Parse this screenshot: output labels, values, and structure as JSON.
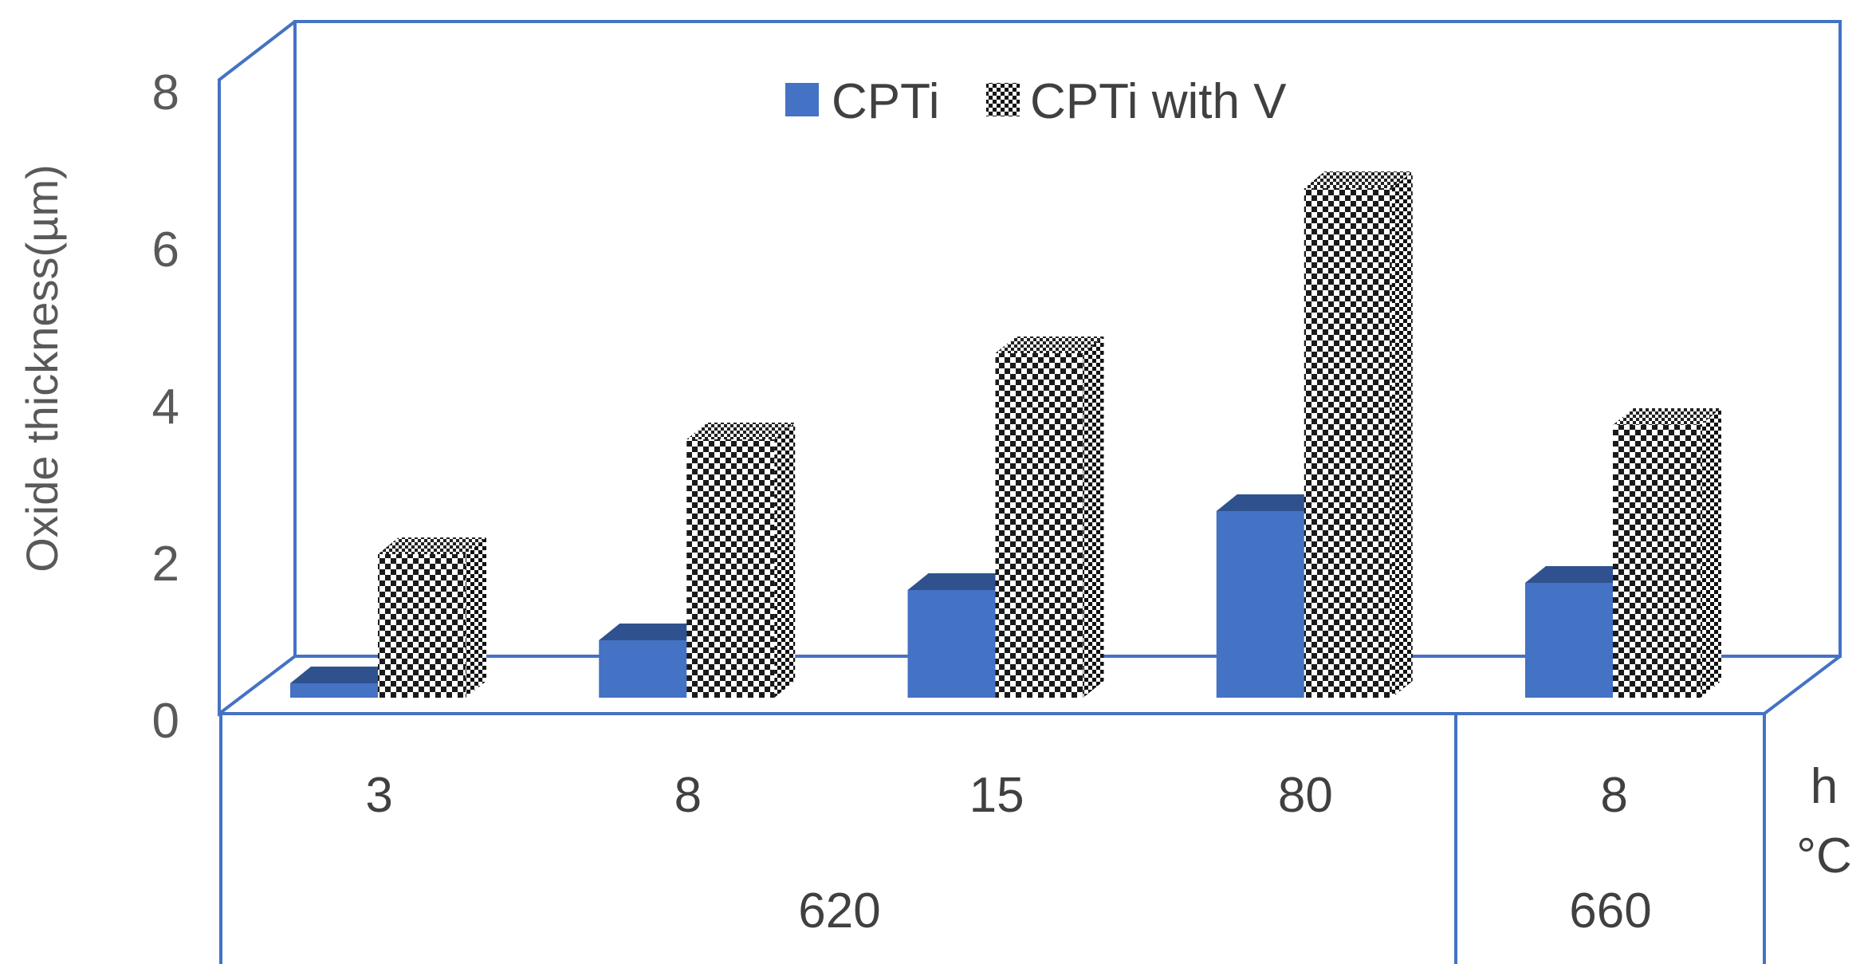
{
  "chart_data": {
    "type": "bar",
    "style": "3d-clustered-column",
    "title": "",
    "ylabel": "Oxide thickness(µm)",
    "ylim": [
      0,
      8
    ],
    "yticks": [
      "0",
      "2",
      "4",
      "6",
      "8"
    ],
    "categories": [
      "3",
      "8",
      "15",
      "80",
      "8"
    ],
    "category_groups": [
      {
        "label": "620",
        "count": 4
      },
      {
        "label": "660",
        "count": 1
      }
    ],
    "axis_level_labels": {
      "inner": "h",
      "outer": "°C"
    },
    "series": [
      {
        "name": "CPTi",
        "values": [
          0.2,
          0.8,
          1.5,
          2.6,
          1.6
        ]
      },
      {
        "name": "CPTi with V",
        "values": [
          2.0,
          3.6,
          4.8,
          7.1,
          3.8
        ]
      }
    ],
    "legend_position": "top-center"
  },
  "colors": {
    "cpti": "#4472c4",
    "cpti_top": "#2f528f",
    "frame": "#4472c4",
    "text": "#595959"
  }
}
